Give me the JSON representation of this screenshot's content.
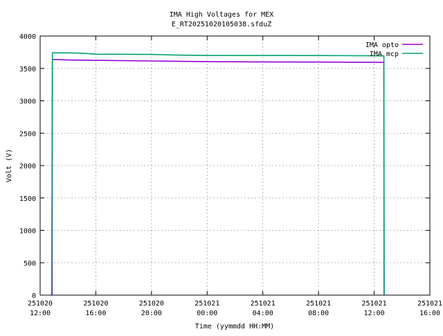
{
  "chart_data": {
    "type": "line",
    "title_line1": "IMA High Voltages for MEX",
    "title_line2": "E_RT20251020105038.sfduZ",
    "xlabel": "Time (yymmdd HH:MM)",
    "ylabel": "Volt (V)",
    "x_range_hours": [
      0,
      28
    ],
    "ylim": [
      0,
      4000
    ],
    "grid": true,
    "legend_position": "top-right",
    "x_ticks": [
      {
        "line1": "251020",
        "line2": "12:00",
        "hour": 0
      },
      {
        "line1": "251020",
        "line2": "16:00",
        "hour": 4
      },
      {
        "line1": "251020",
        "line2": "20:00",
        "hour": 8
      },
      {
        "line1": "251021",
        "line2": "00:00",
        "hour": 12
      },
      {
        "line1": "251021",
        "line2": "04:00",
        "hour": 16
      },
      {
        "line1": "251021",
        "line2": "08:00",
        "hour": 20
      },
      {
        "line1": "251021",
        "line2": "12:00",
        "hour": 24
      },
      {
        "line1": "251021",
        "line2": "16:00",
        "hour": 28
      }
    ],
    "y_ticks": [
      0,
      500,
      1000,
      1500,
      2000,
      2500,
      3000,
      3500,
      4000
    ],
    "series": [
      {
        "name": "IMA opto",
        "color": "#9400d3",
        "points": [
          [
            0.83,
            0
          ],
          [
            0.85,
            200
          ],
          [
            0.86,
            0
          ],
          [
            0.88,
            3640
          ],
          [
            2,
            3630
          ],
          [
            4,
            3625
          ],
          [
            8,
            3615
          ],
          [
            12,
            3605
          ],
          [
            16,
            3600
          ],
          [
            20,
            3598
          ],
          [
            24,
            3595
          ],
          [
            24.7,
            3593
          ],
          [
            24.71,
            0
          ]
        ]
      },
      {
        "name": "IMA mcp",
        "color": "#009e73",
        "points": [
          [
            0.83,
            0
          ],
          [
            0.88,
            3740
          ],
          [
            2,
            3740
          ],
          [
            3,
            3735
          ],
          [
            4,
            3720
          ],
          [
            8,
            3715
          ],
          [
            10,
            3705
          ],
          [
            12,
            3700
          ],
          [
            16,
            3700
          ],
          [
            20,
            3698
          ],
          [
            24,
            3695
          ],
          [
            24.7,
            3693
          ],
          [
            24.72,
            0
          ]
        ]
      }
    ]
  }
}
